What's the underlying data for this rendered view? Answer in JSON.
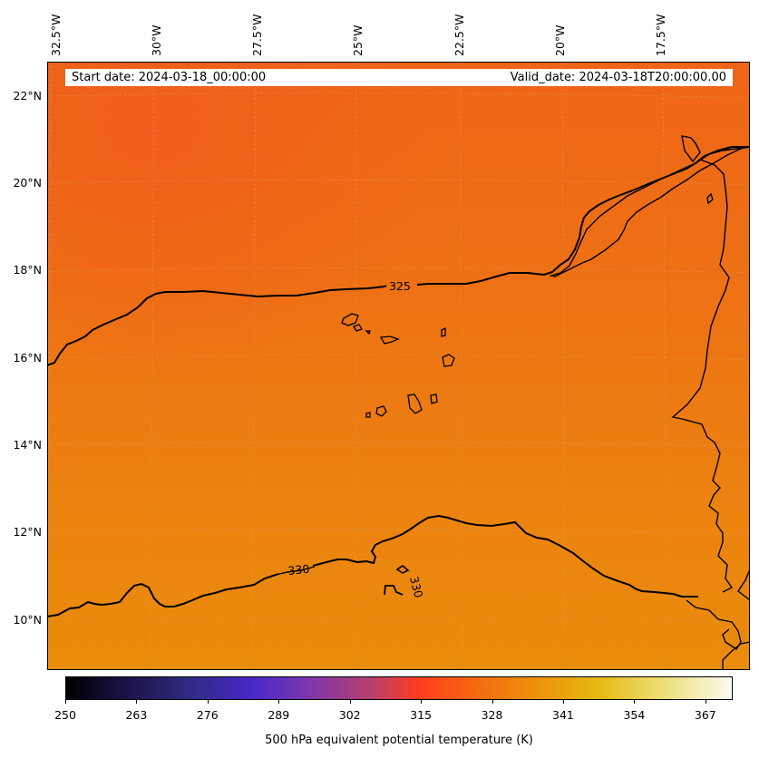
{
  "info": {
    "start_date": "Start date: 2024-03-18_00:00:00",
    "valid_date": "Valid_date: 2024-03-18T20:00:00.00"
  },
  "map": {
    "field": "500 hPa equivalent potential temperature",
    "lat_labels": [
      "22°N",
      "20°N",
      "18°N",
      "16°N",
      "14°N",
      "12°N",
      "10°N"
    ],
    "lat_values": [
      22,
      20,
      18,
      16,
      14,
      12,
      10
    ],
    "lon_labels": [
      "32.5°W",
      "30°W",
      "27.5°W",
      "25°W",
      "22.5°W",
      "20°W",
      "17.5°W"
    ],
    "lon_values": [
      -32.5,
      -30,
      -27.5,
      -25,
      -22.5,
      -20,
      -17.5
    ],
    "contour_labels": [
      "325",
      "330",
      "330"
    ],
    "colors": {
      "field_north": "#f0631a",
      "field_mid": "#ee7a12",
      "field_south": "#eb8a0d",
      "contour": "#000000",
      "grid": "#d9a27a"
    }
  },
  "colorbar": {
    "ticks": [
      "250",
      "263",
      "276",
      "289",
      "302",
      "315",
      "328",
      "341",
      "354",
      "367"
    ],
    "tick_values": [
      250,
      263,
      276,
      289,
      302,
      315,
      328,
      341,
      354,
      367
    ],
    "range": [
      250,
      372
    ],
    "label": "500 hPa equivalent potential temperature (K)"
  }
}
